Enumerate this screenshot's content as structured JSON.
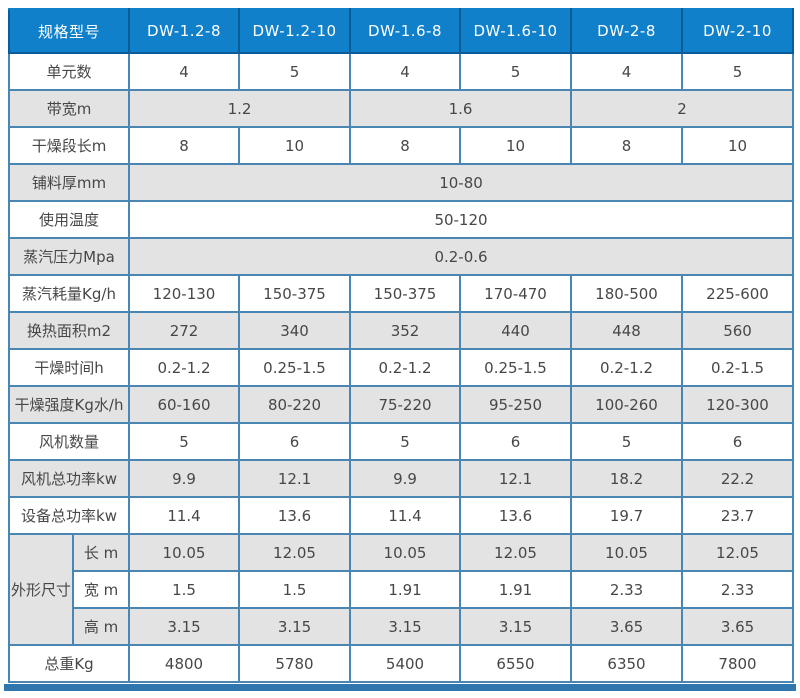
{
  "table": {
    "header": {
      "label": "规格型号",
      "models": [
        "DW-1.2-8",
        "DW-1.2-10",
        "DW-1.6-8",
        "DW-1.6-10",
        "DW-2-8",
        "DW-2-10"
      ]
    },
    "rows": [
      {
        "label": "单元数",
        "values": [
          "4",
          "5",
          "4",
          "5",
          "4",
          "5"
        ]
      },
      {
        "label": "带宽m",
        "values": [
          "1.2",
          "1.6",
          "2"
        ],
        "span": 2
      },
      {
        "label": "干燥段长m",
        "values": [
          "8",
          "10",
          "8",
          "10",
          "8",
          "10"
        ]
      },
      {
        "label": "铺料厚mm",
        "values": [
          "10-80"
        ],
        "span": 6
      },
      {
        "label": "使用温度",
        "values": [
          "50-120"
        ],
        "span": 6
      },
      {
        "label": "蒸汽压力Mpa",
        "values": [
          "0.2-0.6"
        ],
        "span": 6
      },
      {
        "label": "蒸汽耗量Kg/h",
        "values": [
          "120-130",
          "150-375",
          "150-375",
          "170-470",
          "180-500",
          "225-600"
        ]
      },
      {
        "label": "换热面积m2",
        "values": [
          "272",
          "340",
          "352",
          "440",
          "448",
          "560"
        ]
      },
      {
        "label": "干燥时间h",
        "values": [
          "0.2-1.2",
          "0.25-1.5",
          "0.2-1.2",
          "0.25-1.5",
          "0.2-1.2",
          "0.2-1.5"
        ]
      },
      {
        "label": "干燥强度Kg水/h",
        "values": [
          "60-160",
          "80-220",
          "75-220",
          "95-250",
          "100-260",
          "120-300"
        ]
      },
      {
        "label": "风机数量",
        "values": [
          "5",
          "6",
          "5",
          "6",
          "5",
          "6"
        ]
      },
      {
        "label": "风机总功率kw",
        "values": [
          "9.9",
          "12.1",
          "9.9",
          "12.1",
          "18.2",
          "22.2"
        ]
      },
      {
        "label": "设备总功率kw",
        "values": [
          "11.4",
          "13.6",
          "11.4",
          "13.6",
          "19.7",
          "23.7"
        ]
      },
      {
        "group": "外形尺寸",
        "groupRows": 3,
        "sub": "长 m",
        "values": [
          "10.05",
          "12.05",
          "10.05",
          "12.05",
          "10.05",
          "12.05"
        ]
      },
      {
        "sub": "宽 m",
        "values": [
          "1.5",
          "1.5",
          "1.91",
          "1.91",
          "2.33",
          "2.33"
        ]
      },
      {
        "sub": "高 m",
        "values": [
          "3.15",
          "3.15",
          "3.15",
          "3.15",
          "3.65",
          "3.65"
        ]
      },
      {
        "label": "总重Kg",
        "values": [
          "4800",
          "5780",
          "5400",
          "6550",
          "6350",
          "7800"
        ]
      }
    ]
  },
  "colors": {
    "header-bg": "#1080cb",
    "header-text": "#ffffff",
    "header-divider": "#0a5c99",
    "grid-border": "#4a86b4",
    "outer-border": "#2e76ad",
    "stripe": "#e3e3e3",
    "text": "#474747",
    "page-bg": "#ffffff"
  }
}
